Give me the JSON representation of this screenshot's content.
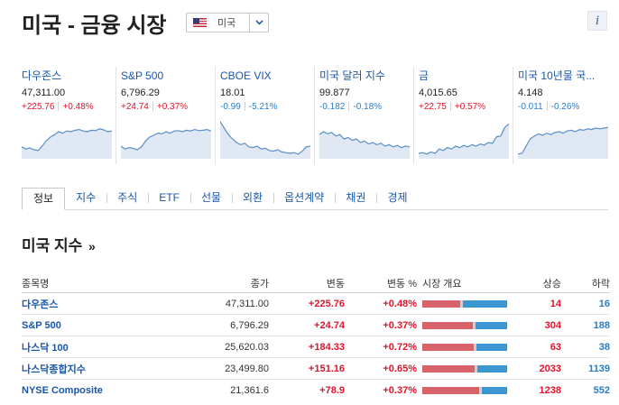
{
  "header": {
    "title": "미국 - 금융 시장",
    "country_select": "미국",
    "info_label": "i"
  },
  "cards": [
    {
      "name": "다우존스",
      "value": "47,311.00",
      "change": "+225.76",
      "pct": "+0.48%",
      "dir": "up",
      "spark": [
        0.28,
        0.22,
        0.25,
        0.2,
        0.18,
        0.3,
        0.45,
        0.55,
        0.62,
        0.7,
        0.66,
        0.72,
        0.7,
        0.74,
        0.76,
        0.72,
        0.7,
        0.74,
        0.73,
        0.78,
        0.75,
        0.7,
        0.72
      ]
    },
    {
      "name": "S&P 500",
      "value": "6,796.29",
      "change": "+24.74",
      "pct": "+0.37%",
      "dir": "up",
      "spark": [
        0.3,
        0.22,
        0.26,
        0.24,
        0.2,
        0.28,
        0.44,
        0.55,
        0.6,
        0.66,
        0.64,
        0.7,
        0.66,
        0.72,
        0.73,
        0.7,
        0.74,
        0.72,
        0.76,
        0.73,
        0.74,
        0.76,
        0.72
      ]
    },
    {
      "name": "CBOE VIX",
      "value": "18.01",
      "change": "-0.99",
      "pct": "-5.21%",
      "dir": "down",
      "spark": [
        0.98,
        0.8,
        0.62,
        0.5,
        0.4,
        0.34,
        0.38,
        0.28,
        0.26,
        0.3,
        0.22,
        0.24,
        0.18,
        0.16,
        0.2,
        0.14,
        0.12,
        0.1,
        0.12,
        0.08,
        0.16,
        0.28,
        0.3
      ]
    },
    {
      "name": "미국 달러 지수",
      "value": "99.877",
      "change": "-0.182",
      "pct": "-0.18%",
      "dir": "down",
      "spark": [
        0.62,
        0.7,
        0.64,
        0.68,
        0.58,
        0.62,
        0.5,
        0.54,
        0.46,
        0.5,
        0.4,
        0.44,
        0.36,
        0.4,
        0.34,
        0.38,
        0.3,
        0.34,
        0.28,
        0.32,
        0.26,
        0.3,
        0.28
      ]
    },
    {
      "name": "금",
      "value": "4,015.65",
      "change": "+22.75",
      "pct": "+0.57%",
      "dir": "up",
      "spark": [
        0.1,
        0.12,
        0.08,
        0.14,
        0.1,
        0.22,
        0.18,
        0.26,
        0.22,
        0.3,
        0.26,
        0.32,
        0.28,
        0.34,
        0.3,
        0.36,
        0.33,
        0.4,
        0.38,
        0.56,
        0.58,
        0.82,
        0.92
      ]
    },
    {
      "name": "미국 10년물 국...",
      "value": "4.148",
      "change": "-0.011",
      "pct": "-0.26%",
      "dir": "down",
      "spark": [
        0.08,
        0.1,
        0.3,
        0.5,
        0.58,
        0.64,
        0.6,
        0.66,
        0.62,
        0.68,
        0.7,
        0.66,
        0.72,
        0.74,
        0.7,
        0.76,
        0.74,
        0.78,
        0.76,
        0.8,
        0.78,
        0.8,
        0.82
      ]
    }
  ],
  "tabs": [
    "정보",
    "지수",
    "주식",
    "ETF",
    "선물",
    "외환",
    "옵션계약",
    "채권",
    "경제"
  ],
  "section": {
    "title": "미국 지수",
    "more": "»"
  },
  "table": {
    "headers": [
      "종목명",
      "종가",
      "변동",
      "변동 %",
      "시장 개요",
      "상승",
      "하락"
    ],
    "rows": [
      {
        "name": "다우존스",
        "close": "47,311.00",
        "change": "+225.76",
        "pct": "+0.48%",
        "adv": "14",
        "dec": "16"
      },
      {
        "name": "S&P 500",
        "close": "6,796.29",
        "change": "+24.74",
        "pct": "+0.37%",
        "adv": "304",
        "dec": "188"
      },
      {
        "name": "나스닥 100",
        "close": "25,620.03",
        "change": "+184.33",
        "pct": "+0.72%",
        "adv": "63",
        "dec": "38"
      },
      {
        "name": "나스닥종합지수",
        "close": "23,499.80",
        "change": "+151.16",
        "pct": "+0.65%",
        "adv": "2033",
        "dec": "1139"
      },
      {
        "name": "NYSE Composite",
        "close": "21,361.6",
        "change": "+78.9",
        "pct": "+0.37%",
        "adv": "1238",
        "dec": "552"
      }
    ]
  },
  "colors": {
    "up": "#e0142a",
    "down": "#2a7cc7",
    "link": "#1a56a8",
    "spark_line": "#5b8fc7",
    "spark_fill": "#dfe8f3"
  }
}
